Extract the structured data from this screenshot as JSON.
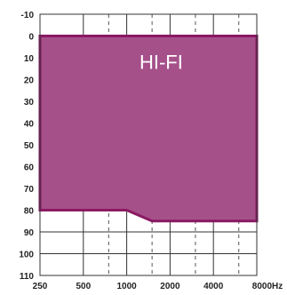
{
  "chart_data": {
    "type": "area",
    "title": "",
    "xlabel": "",
    "ylabel": "",
    "x_categories": [
      "250",
      "500",
      "1000",
      "2000",
      "4000",
      "8000Hz"
    ],
    "x_half_octaves": [
      750,
      1500,
      3000,
      6000
    ],
    "y_ticks": [
      -10,
      0,
      10,
      20,
      30,
      40,
      50,
      60,
      70,
      80,
      90,
      100,
      110
    ],
    "ylim": [
      -10,
      110
    ],
    "y_inverted": true,
    "grid": true,
    "band": {
      "label": "HI-FI",
      "top": 0,
      "bottom": [
        {
          "x": 250,
          "y": 80
        },
        {
          "x": 1000,
          "y": 80
        },
        {
          "x": 1500,
          "y": 85
        },
        {
          "x": 8000,
          "y": 85
        }
      ],
      "fill_color": "#a6508a",
      "edge_color": "#8a1a63"
    }
  }
}
